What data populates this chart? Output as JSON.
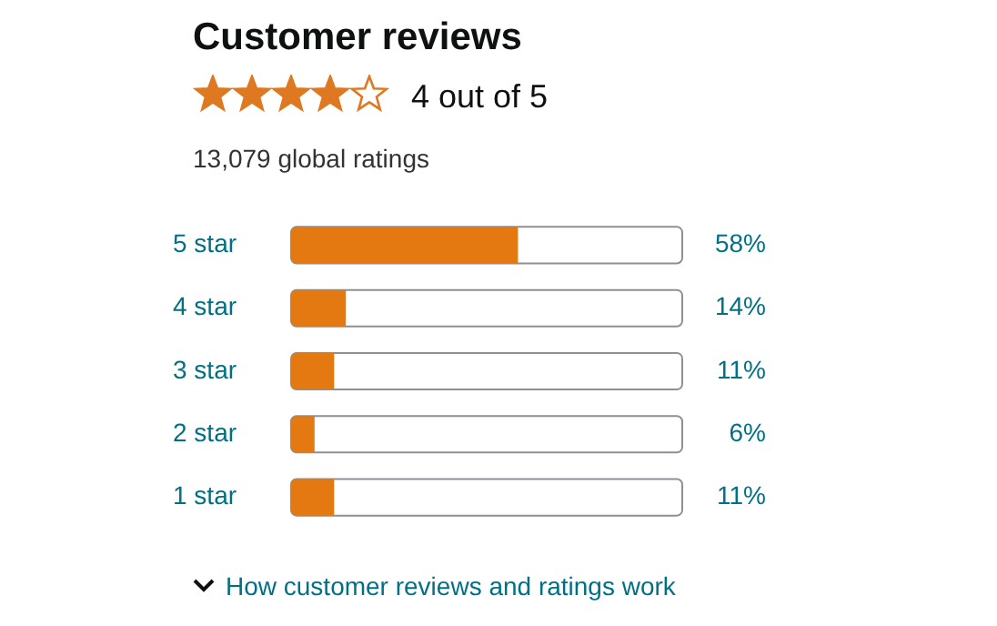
{
  "chart_data": {
    "type": "bar",
    "orientation": "horizontal",
    "title": "Customer reviews",
    "subtitle": "4 out of 5",
    "annotations": [
      "13,079 global ratings",
      "How customer reviews and ratings work"
    ],
    "categories": [
      "5 star",
      "4 star",
      "3 star",
      "2 star",
      "1 star"
    ],
    "values": [
      58,
      14,
      11,
      6,
      11
    ],
    "value_labels": [
      "58%",
      "14%",
      "11%",
      "6%",
      "11%"
    ],
    "color": "#e47911",
    "xlim": [
      0,
      100
    ],
    "tick_labels": "y"
  }
}
